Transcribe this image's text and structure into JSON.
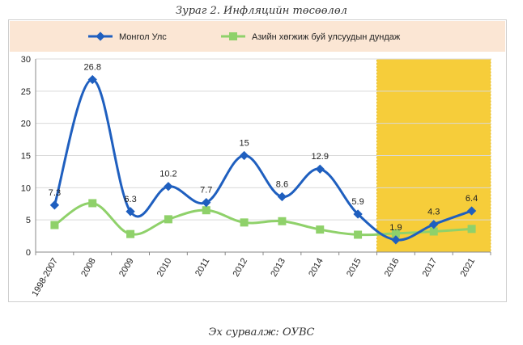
{
  "figure": {
    "title": "Зураг 2. Инфляцийн төсөөлөл",
    "source": "Эх сурвалж: ОУВС"
  },
  "colors": {
    "legend_band": "#fbe6d4",
    "highlight": "#f5c518",
    "mongolia": "#1f5fbf",
    "asia": "#8fd16a",
    "grid": "#d9d9d9"
  },
  "chart_data": {
    "type": "line",
    "title": "",
    "xlabel": "",
    "ylabel": "",
    "categories": [
      "1998-2007",
      "2008",
      "2009",
      "2010",
      "2011",
      "2012",
      "2013",
      "2014",
      "2015",
      "2016",
      "2017",
      "2021"
    ],
    "ylim": [
      0,
      30
    ],
    "yticks": [
      0,
      5,
      10,
      15,
      20,
      25,
      30
    ],
    "grid": true,
    "legend_position": "top",
    "highlight_categories": [
      "2016",
      "2021"
    ],
    "series": [
      {
        "name": "Монгол Улс",
        "color": "#1f5fbf",
        "marker": "diamond",
        "values": [
          7.3,
          26.8,
          6.3,
          10.2,
          7.7,
          15,
          8.6,
          12.9,
          5.9,
          1.9,
          4.3,
          6.4
        ],
        "labels": [
          "7.3",
          "26.8",
          "6.3",
          "10.2",
          "7.7",
          "15",
          "8.6",
          "12.9",
          "5.9",
          "1.9",
          "4.3",
          "6.4"
        ]
      },
      {
        "name": "Азийн хөгжиж буй улсуудын дундаж",
        "color": "#8fd16a",
        "marker": "square",
        "values": [
          4.2,
          7.6,
          2.8,
          5.1,
          6.5,
          4.6,
          4.8,
          3.5,
          2.7,
          2.9,
          3.2,
          3.6
        ]
      }
    ]
  }
}
